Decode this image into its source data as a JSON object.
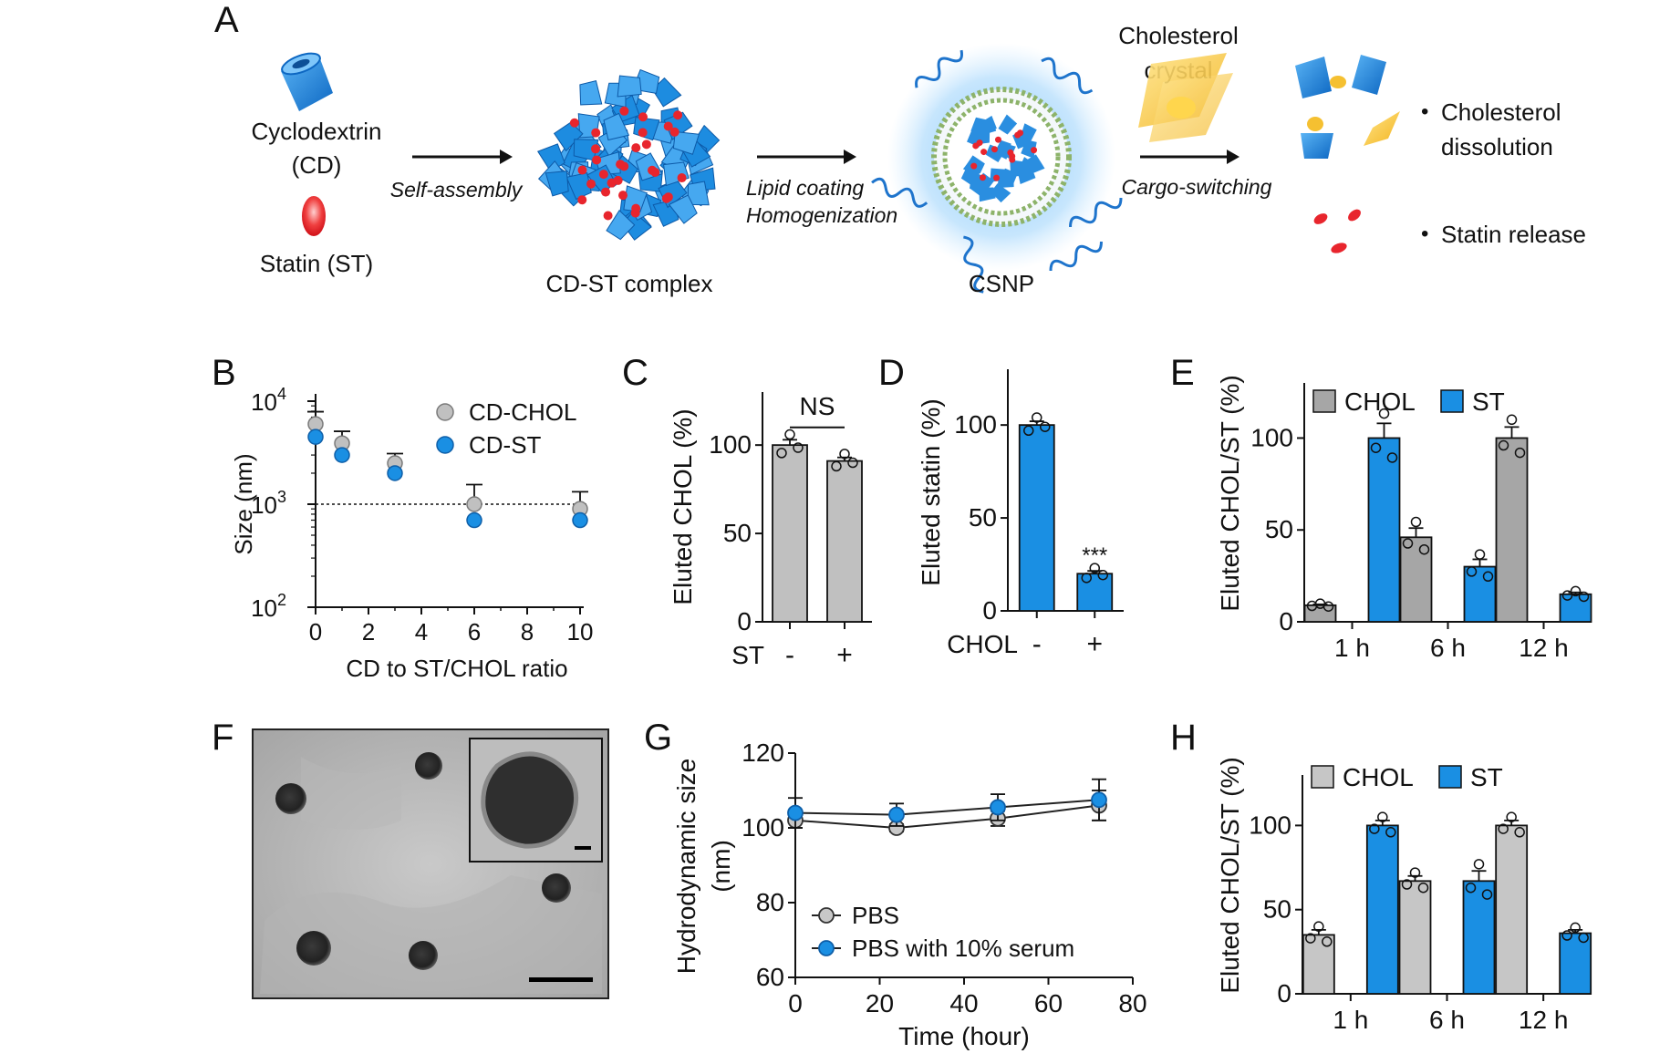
{
  "colors": {
    "blue": "#1a8fe3",
    "blue_dark": "#0f5fa8",
    "gray": "#c0c0c0",
    "red": "#e8252d",
    "gold": "#f5c031",
    "lipid": "#8db36a"
  },
  "panelA": {
    "letter": "A",
    "cd_label1": "Cyclodextrin",
    "cd_label2": "(CD)",
    "st_label": "Statin (ST)",
    "arrow1_label": "Self-assembly",
    "complex_label": "CD-ST complex",
    "arrow2_label1": "Lipid coating",
    "arrow2_label2": "Homogenization",
    "csnp_label": "CSNP",
    "crystal_label1": "Cholesterol",
    "crystal_label2": "crystal",
    "arrow3_label": "Cargo-switching",
    "bullet1_line1": "Cholesterol",
    "bullet1_line2": "dissolution",
    "bullet2": "Statin release",
    "bullet_char": "•"
  },
  "panelF": {
    "letter": "F"
  },
  "chart_data": [
    {
      "panel": "B",
      "type": "scatter",
      "yscale": "log",
      "xlabel": "CD to ST/CHOL ratio",
      "ylabel": "Size (nm)",
      "xlim": [
        0,
        10
      ],
      "ylim": [
        100,
        10000
      ],
      "xticks": [
        "0",
        "2",
        "4",
        "6",
        "8",
        "10"
      ],
      "ytick_bases": [
        "10",
        "10",
        "10"
      ],
      "ytick_exps": [
        "4",
        "3",
        "2"
      ],
      "reference_line": 1000,
      "legend": "top-right",
      "series": [
        {
          "name": "CD-CHOL",
          "x": [
            0,
            1,
            3,
            6,
            10
          ],
          "y": [
            6000,
            3900,
            2500,
            1000,
            900
          ],
          "err": [
            1900,
            1200,
            600,
            550,
            420
          ]
        },
        {
          "name": "CD-ST",
          "x": [
            0,
            1,
            3,
            6,
            10
          ],
          "y": [
            4500,
            3000,
            2000,
            700,
            700
          ],
          "err": [
            0,
            0,
            0,
            0,
            0
          ]
        }
      ]
    },
    {
      "panel": "C",
      "type": "bar",
      "ylabel": "Eluted CHOL (%)",
      "ylim": [
        0,
        130
      ],
      "yticks": [
        "0",
        "50",
        "100"
      ],
      "axis_label": "ST",
      "categories": [
        "-",
        "+"
      ],
      "values": [
        100,
        91
      ],
      "err": [
        3,
        2
      ],
      "significance": "NS"
    },
    {
      "panel": "D",
      "type": "bar",
      "ylabel": "Eluted statin (%)",
      "ylim": [
        0,
        130
      ],
      "yticks": [
        "0",
        "50",
        "100"
      ],
      "axis_label": "CHOL",
      "categories": [
        "-",
        "+"
      ],
      "values": [
        100,
        20
      ],
      "err": [
        2,
        1.5
      ],
      "significance": "***"
    },
    {
      "panel": "E",
      "type": "bar",
      "ylabel": "Eluted CHOL/ST (%)",
      "ylim": [
        0,
        130
      ],
      "yticks": [
        "0",
        "50",
        "100"
      ],
      "categories": [
        "1 h",
        "6 h",
        "12 h"
      ],
      "legend": "top",
      "series": [
        {
          "name": "CHOL",
          "values": [
            9,
            46,
            100
          ],
          "err": [
            0.5,
            5,
            6
          ]
        },
        {
          "name": "ST",
          "values": [
            100,
            30,
            15
          ],
          "err": [
            8,
            4,
            1
          ]
        }
      ]
    },
    {
      "panel": "G",
      "type": "line",
      "xlabel": "Time (hour)",
      "ylabel_line1": "Hydrodynamic size",
      "ylabel_line2": "(nm)",
      "xlim": [
        0,
        80
      ],
      "ylim": [
        60,
        120
      ],
      "xticks": [
        "0",
        "20",
        "40",
        "60",
        "80"
      ],
      "yticks": [
        "60",
        "80",
        "100",
        "120"
      ],
      "legend": "bottom-left",
      "series": [
        {
          "name": "PBS",
          "x": [
            0,
            24,
            48,
            72
          ],
          "y": [
            102,
            100,
            102.5,
            106
          ],
          "err": [
            2,
            1,
            2,
            4
          ]
        },
        {
          "name": "PBS with 10% serum",
          "x": [
            0,
            24,
            48,
            72
          ],
          "y": [
            104,
            103.5,
            105.5,
            107.5
          ],
          "err": [
            4,
            3,
            3.5,
            5.5
          ]
        }
      ]
    },
    {
      "panel": "H",
      "type": "bar",
      "ylabel": "Eluted CHOL/ST (%)",
      "ylim": [
        0,
        130
      ],
      "yticks": [
        "0",
        "50",
        "100"
      ],
      "categories": [
        "1 h",
        "6 h",
        "12 h"
      ],
      "legend": "top",
      "series": [
        {
          "name": "CHOL",
          "values": [
            35,
            67,
            100
          ],
          "err": [
            3,
            3,
            3
          ]
        },
        {
          "name": "ST",
          "values": [
            100,
            67,
            36
          ],
          "err": [
            3,
            6,
            2
          ]
        }
      ]
    }
  ]
}
